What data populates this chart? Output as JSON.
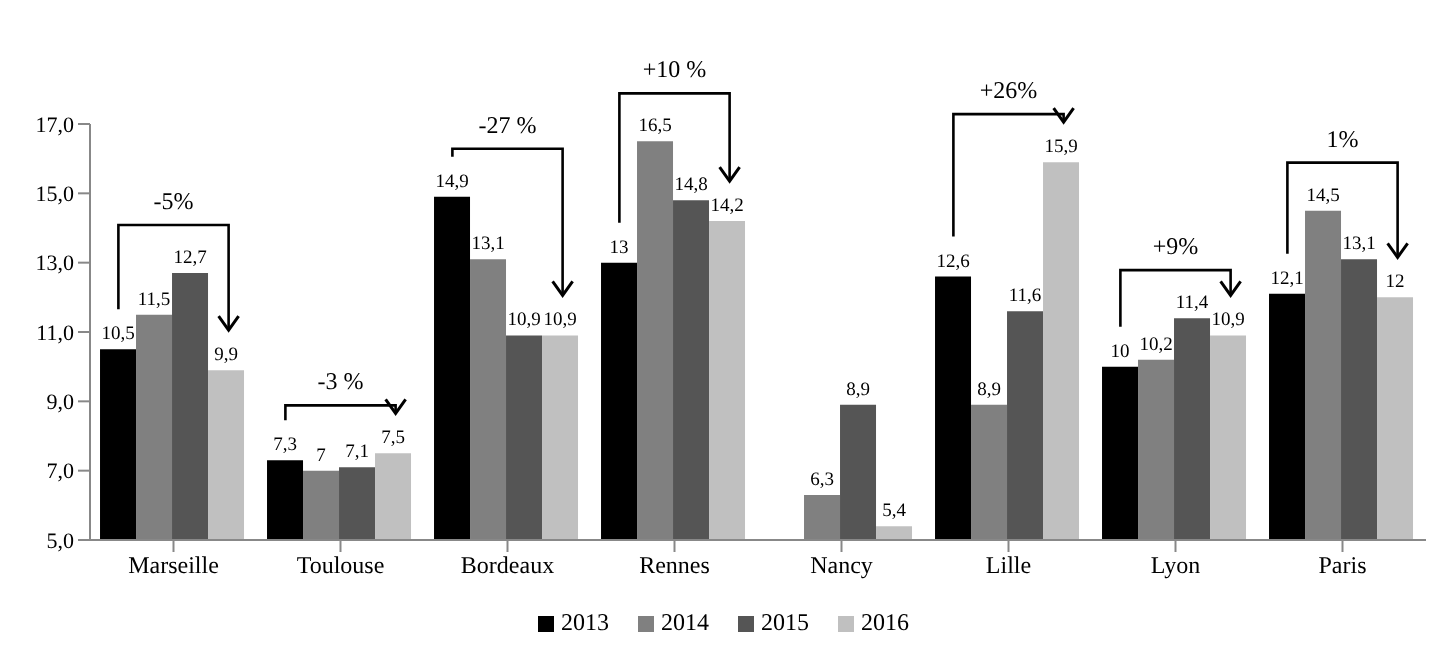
{
  "chart_data": {
    "type": "bar",
    "categories": [
      "Marseille",
      "Toulouse",
      "Bordeaux",
      "Rennes",
      "Nancy",
      "Lille",
      "Lyon",
      "Paris"
    ],
    "series": [
      {
        "name": "2013",
        "color": "#000000",
        "values": [
          10.5,
          7.3,
          14.9,
          13,
          null,
          12.6,
          10,
          12.1
        ],
        "value_labels": [
          "10,5",
          "7,3",
          "14,9",
          "13",
          null,
          "12,6",
          "10",
          "12,1"
        ]
      },
      {
        "name": "2014",
        "color": "#808080",
        "values": [
          11.5,
          7,
          13.1,
          16.5,
          6.3,
          8.9,
          10.2,
          14.5
        ],
        "value_labels": [
          "11,5",
          "7",
          "13,1",
          "16,5",
          "6,3",
          "8,9",
          "10,2",
          "14,5"
        ]
      },
      {
        "name": "2015",
        "color": "#555555",
        "values": [
          12.7,
          7.1,
          10.9,
          14.8,
          8.9,
          11.6,
          11.4,
          13.1
        ],
        "value_labels": [
          "12,7",
          "7,1",
          "10,9",
          "14,8",
          "8,9",
          "11,6",
          "11,4",
          "13,1"
        ]
      },
      {
        "name": "2016",
        "color": "#c0c0c0",
        "values": [
          9.9,
          7.5,
          10.9,
          14.2,
          5.4,
          15.9,
          10.9,
          12
        ],
        "value_labels": [
          "9,9",
          "7,5",
          "10,9",
          "14,2",
          "5,4",
          "15,9",
          "10,9",
          "12"
        ]
      }
    ],
    "ylim": [
      5,
      17
    ],
    "yticks": [
      {
        "value": 5,
        "label": "5,0"
      },
      {
        "value": 7,
        "label": "7,0"
      },
      {
        "value": 9,
        "label": "9,0"
      },
      {
        "value": 11,
        "label": "11,0"
      },
      {
        "value": 13,
        "label": "13,0"
      },
      {
        "value": 15,
        "label": "15,0"
      },
      {
        "value": 17,
        "label": "17,0"
      }
    ],
    "grid": false,
    "legend": "bottom",
    "annotations": [
      "-5%",
      "-3 %",
      "-27 %",
      "+10 %",
      "+26%",
      "+9%",
      "1%"
    ]
  }
}
